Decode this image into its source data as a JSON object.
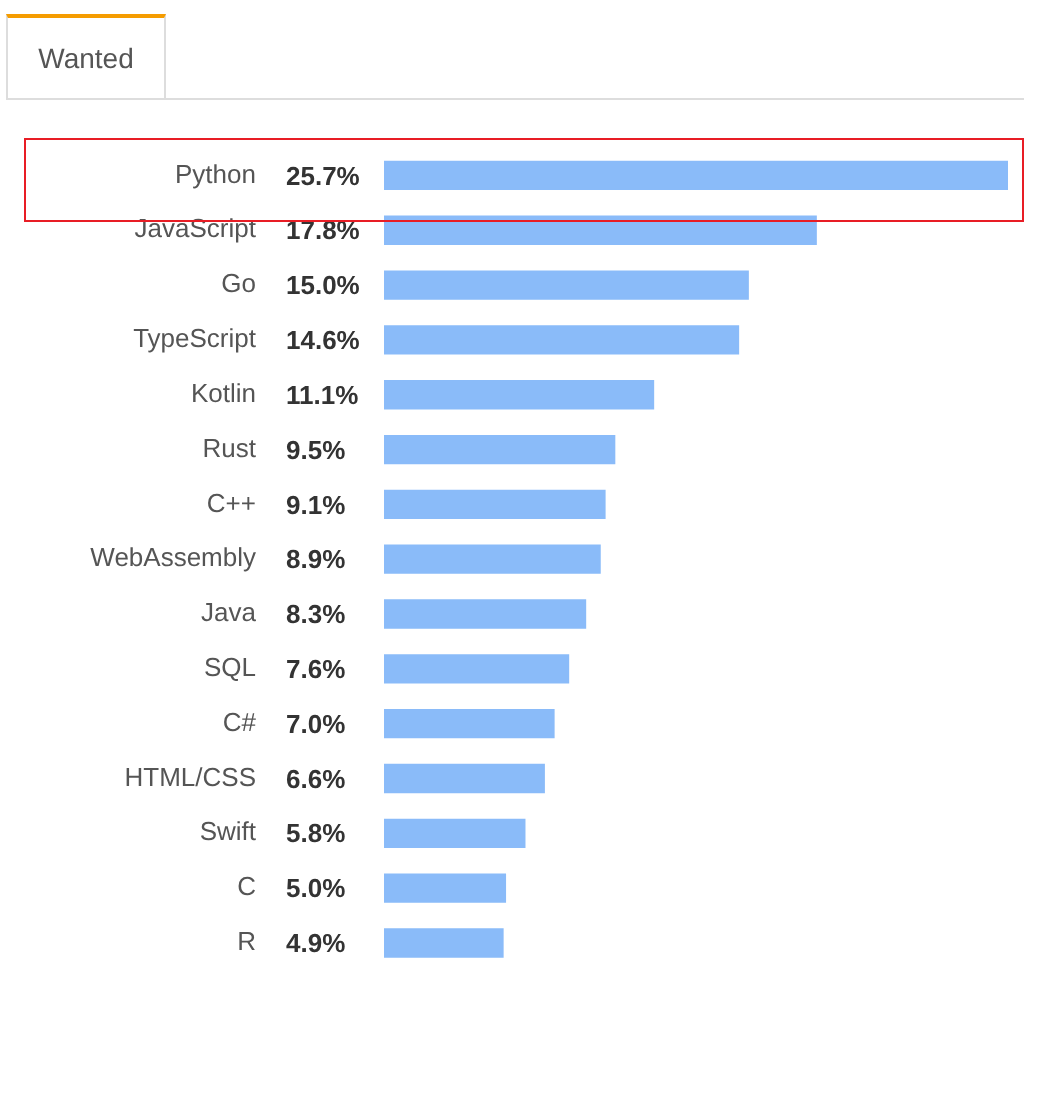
{
  "chart_data": {
    "type": "bar",
    "orientation": "horizontal",
    "title": "Wanted",
    "categories": [
      "Python",
      "JavaScript",
      "Go",
      "TypeScript",
      "Kotlin",
      "Rust",
      "C++",
      "WebAssembly",
      "Java",
      "SQL",
      "C#",
      "HTML/CSS",
      "Swift",
      "C",
      "R"
    ],
    "values": [
      25.7,
      17.8,
      15.0,
      14.6,
      11.1,
      9.5,
      9.1,
      8.9,
      8.3,
      7.6,
      7.0,
      6.6,
      5.8,
      5.0,
      4.9
    ],
    "value_labels": [
      "25.7%",
      "17.8%",
      "15.0%",
      "14.6%",
      "11.1%",
      "9.5%",
      "9.1%",
      "8.9%",
      "8.3%",
      "7.6%",
      "7.0%",
      "6.6%",
      "5.8%",
      "5.0%",
      "4.9%"
    ],
    "color": "#8abbf9"
  }
}
